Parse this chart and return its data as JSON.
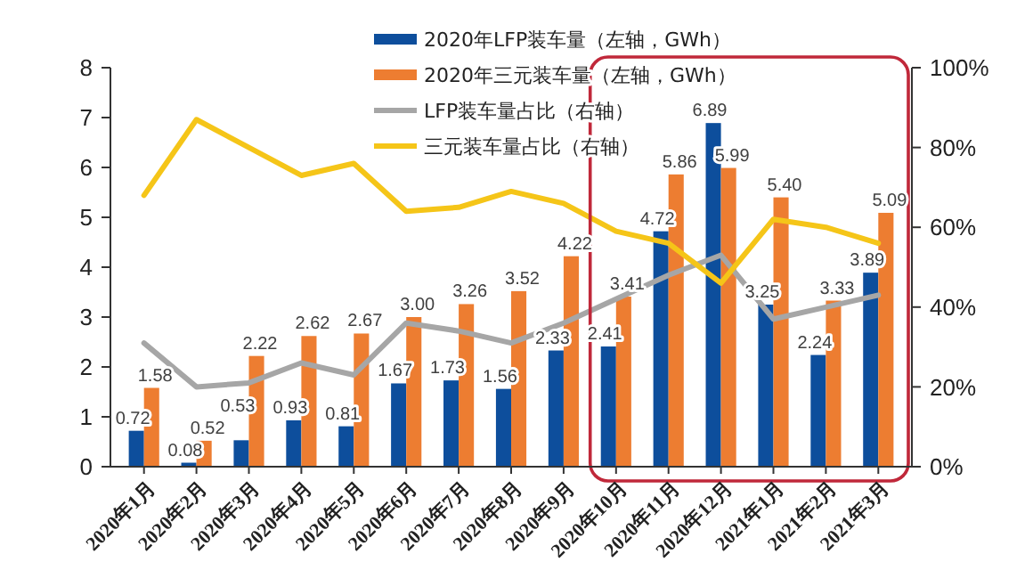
{
  "chart_data": {
    "type": "bar",
    "categories": [
      "2020年1月",
      "2020年2月",
      "2020年3月",
      "2020年4月",
      "2020年5月",
      "2020年6月",
      "2020年7月",
      "2020年8月",
      "2020年9月",
      "2020年10月",
      "2020年11月",
      "2020年12月",
      "2021年1月",
      "2021年2月",
      "2021年3月"
    ],
    "series": [
      {
        "name": "2020年LFP装车量（左轴，GWh）",
        "color": "#0d4e9c",
        "values": [
          0.72,
          0.08,
          0.53,
          0.93,
          0.81,
          1.67,
          1.73,
          1.56,
          2.33,
          2.41,
          4.72,
          6.89,
          3.25,
          2.24,
          3.89
        ],
        "value_labels": [
          "0.72",
          "0.08",
          "0.53",
          "0.93",
          "0.81",
          "1.67",
          "1.73",
          "1.56",
          "2.33",
          "2.41",
          "4.72",
          "6.89",
          "3.25",
          "2.24",
          "3.89"
        ]
      },
      {
        "name": "2020年三元装车量（左轴，GWh）",
        "color": "#ed7d31",
        "values": [
          1.58,
          0.52,
          2.22,
          2.62,
          2.67,
          3.0,
          3.26,
          3.52,
          4.22,
          3.41,
          5.86,
          5.99,
          5.4,
          3.33,
          5.09
        ],
        "value_labels": [
          "1.58",
          "0.52",
          "2.22",
          "2.62",
          "2.67",
          "3.00",
          "3.26",
          "3.52",
          "4.22",
          "3.41",
          "5.86",
          "5.99",
          "5.40",
          "3.33",
          "5.09"
        ]
      },
      {
        "name": "LFP装车量占比（右轴）",
        "type": "line",
        "axis": "y2",
        "color": "#a6a6a6",
        "values": [
          31,
          20,
          21,
          26,
          23,
          36,
          34,
          31,
          36,
          42,
          48,
          53,
          37,
          40,
          43
        ]
      },
      {
        "name": "三元装车量占比（右轴）",
        "type": "line",
        "axis": "y2",
        "color": "#f5c518",
        "values": [
          68,
          87,
          80,
          73,
          76,
          64,
          65,
          69,
          66,
          59,
          56,
          46,
          62,
          60,
          56
        ]
      }
    ],
    "ylim": [
      0,
      8
    ],
    "yticks": [
      0,
      1,
      2,
      3,
      4,
      5,
      6,
      7,
      8
    ],
    "y2lim": [
      0,
      100
    ],
    "y2ticks": [
      {
        "value": 0,
        "label": "0%"
      },
      {
        "value": 20,
        "label": "20%"
      },
      {
        "value": 40,
        "label": "40%"
      },
      {
        "value": 60,
        "label": "60%"
      },
      {
        "value": 80,
        "label": "80%"
      },
      {
        "value": 100,
        "label": "100%"
      }
    ],
    "legend": "top",
    "grid": false,
    "marker": "none",
    "line_style": "solid"
  }
}
